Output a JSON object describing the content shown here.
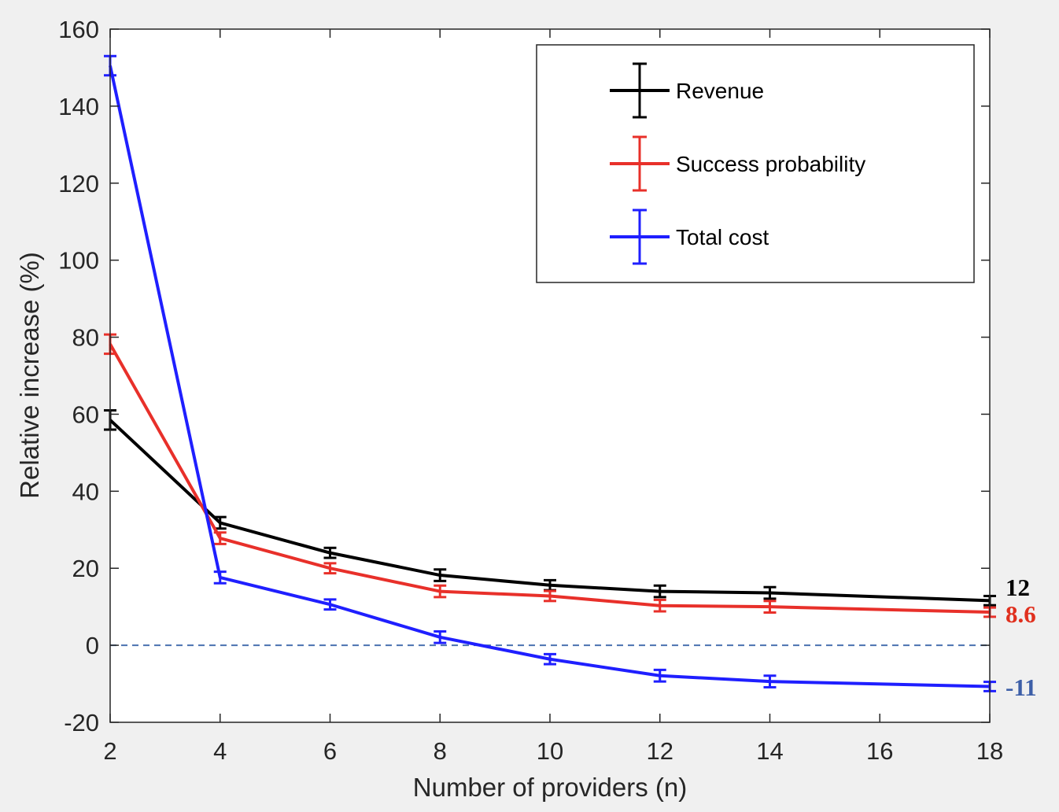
{
  "chart_data": {
    "type": "line",
    "title": "",
    "xlabel": "Number of providers (n)",
    "ylabel": "Relative increase (%)",
    "xlim": [
      2,
      18
    ],
    "ylim": [
      -20,
      160
    ],
    "xticks": [
      2,
      4,
      6,
      8,
      10,
      12,
      14,
      16,
      18
    ],
    "yticks": [
      -20,
      0,
      20,
      40,
      60,
      80,
      100,
      120,
      140,
      160
    ],
    "x": [
      2,
      4,
      6,
      8,
      10,
      12,
      14,
      16,
      18
    ],
    "reference_line": {
      "y": 0,
      "style": "dashed",
      "color": "#4a72b0"
    },
    "legend_position": "top-right",
    "series": [
      {
        "name": "Revenue",
        "color": "#000000",
        "x": [
          2,
          4,
          6,
          8,
          10,
          12,
          14,
          18
        ],
        "values": [
          58.5,
          31.8,
          24.0,
          18.2,
          15.6,
          14.0,
          13.6,
          11.6
        ],
        "errors": [
          2.5,
          1.5,
          1.3,
          1.5,
          1.3,
          1.5,
          1.5,
          1.2
        ],
        "end_label": "12",
        "end_label_color": "#000000"
      },
      {
        "name": "Success probability",
        "color": "#e8302a",
        "x": [
          2,
          4,
          6,
          8,
          10,
          12,
          14,
          18
        ],
        "values": [
          78.2,
          27.8,
          20.0,
          14.0,
          12.8,
          10.3,
          10.0,
          8.6
        ],
        "errors": [
          2.5,
          1.5,
          1.3,
          1.5,
          1.3,
          1.5,
          1.5,
          1.2
        ],
        "end_label": "8.6",
        "end_label_color": "#e0301e"
      },
      {
        "name": "Total cost",
        "color": "#1f1fff",
        "x": [
          2,
          4,
          6,
          8,
          10,
          12,
          14,
          18
        ],
        "values": [
          150.5,
          17.6,
          10.6,
          2.1,
          -3.6,
          -7.9,
          -9.4,
          -10.7
        ],
        "errors": [
          2.5,
          1.5,
          1.3,
          1.5,
          1.3,
          1.5,
          1.5,
          1.2
        ],
        "end_label": "-11",
        "end_label_color": "#3d5fa8"
      }
    ]
  }
}
